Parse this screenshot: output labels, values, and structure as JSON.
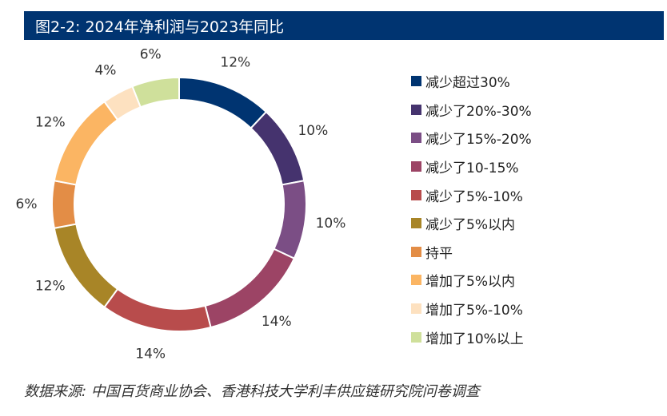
{
  "title": "图2-2: 2024年净利润与2023年同比",
  "source": "数据来源: 中国百货商业协会、香港科技大学利丰供应链研究院问卷调查",
  "chart_data": {
    "type": "pie",
    "title": "图2-2: 2024年净利润与2023年同比",
    "donut": true,
    "legend_position": "right",
    "slices": [
      {
        "label": "减少超过30%",
        "value": 12,
        "value_label": "12%",
        "color": "#003471"
      },
      {
        "label": "减少了20%-30%",
        "value": 10,
        "value_label": "10%",
        "color": "#45336e"
      },
      {
        "label": "减少了15%-20%",
        "value": 10,
        "value_label": "10%",
        "color": "#7b4e85"
      },
      {
        "label": "减少了10-15%",
        "value": 14,
        "value_label": "14%",
        "color": "#9c4465"
      },
      {
        "label": "减少了5%-10%",
        "value": 14,
        "value_label": "14%",
        "color": "#b84c4c"
      },
      {
        "label": "减少了5%以内",
        "value": 12,
        "value_label": "12%",
        "color": "#a88527"
      },
      {
        "label": "持平",
        "value": 6,
        "value_label": "6%",
        "color": "#e38d46"
      },
      {
        "label": "增加了5%以内",
        "value": 12,
        "value_label": "12%",
        "color": "#fbb563"
      },
      {
        "label": "增加了5%-10%",
        "value": 4,
        "value_label": "4%",
        "color": "#fde1c0"
      },
      {
        "label": "增加了10%以上",
        "value": 6,
        "value_label": "6%",
        "color": "#cfe09b"
      }
    ]
  }
}
